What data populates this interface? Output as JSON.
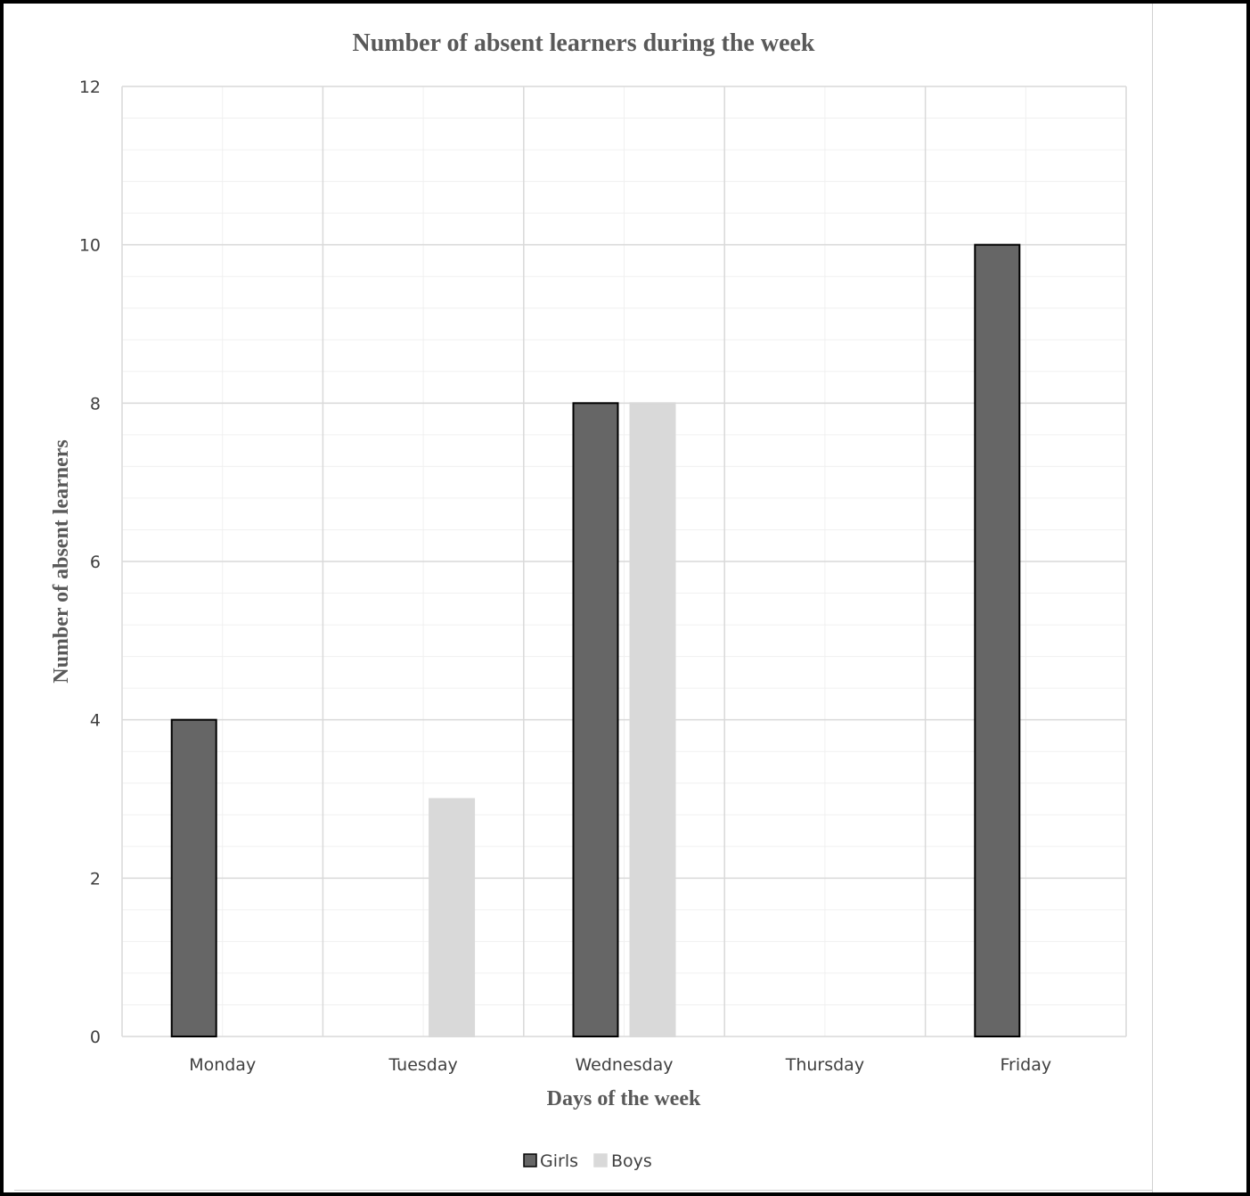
{
  "chart_data": {
    "type": "bar",
    "title": "Number of absent  learners during the week",
    "xlabel": "Days of the week",
    "ylabel": "Number of absent learners",
    "categories": [
      "Monday",
      "Tuesday",
      "Wednesday",
      "Thursday",
      "Friday"
    ],
    "series": [
      {
        "name": "Girls",
        "values": [
          4,
          0,
          8,
          0,
          10
        ],
        "color": "#666666",
        "stroke": "#000000"
      },
      {
        "name": "Boys",
        "values": [
          0,
          3,
          8,
          0,
          0
        ],
        "color": "#d9d9d9",
        "stroke": "#d9d9d9"
      }
    ],
    "ylim": [
      0,
      12
    ],
    "yticks": [
      0,
      2,
      4,
      6,
      8,
      10,
      12
    ],
    "minor_grid_step": 0.4,
    "grid": true,
    "legend": "bottom"
  }
}
